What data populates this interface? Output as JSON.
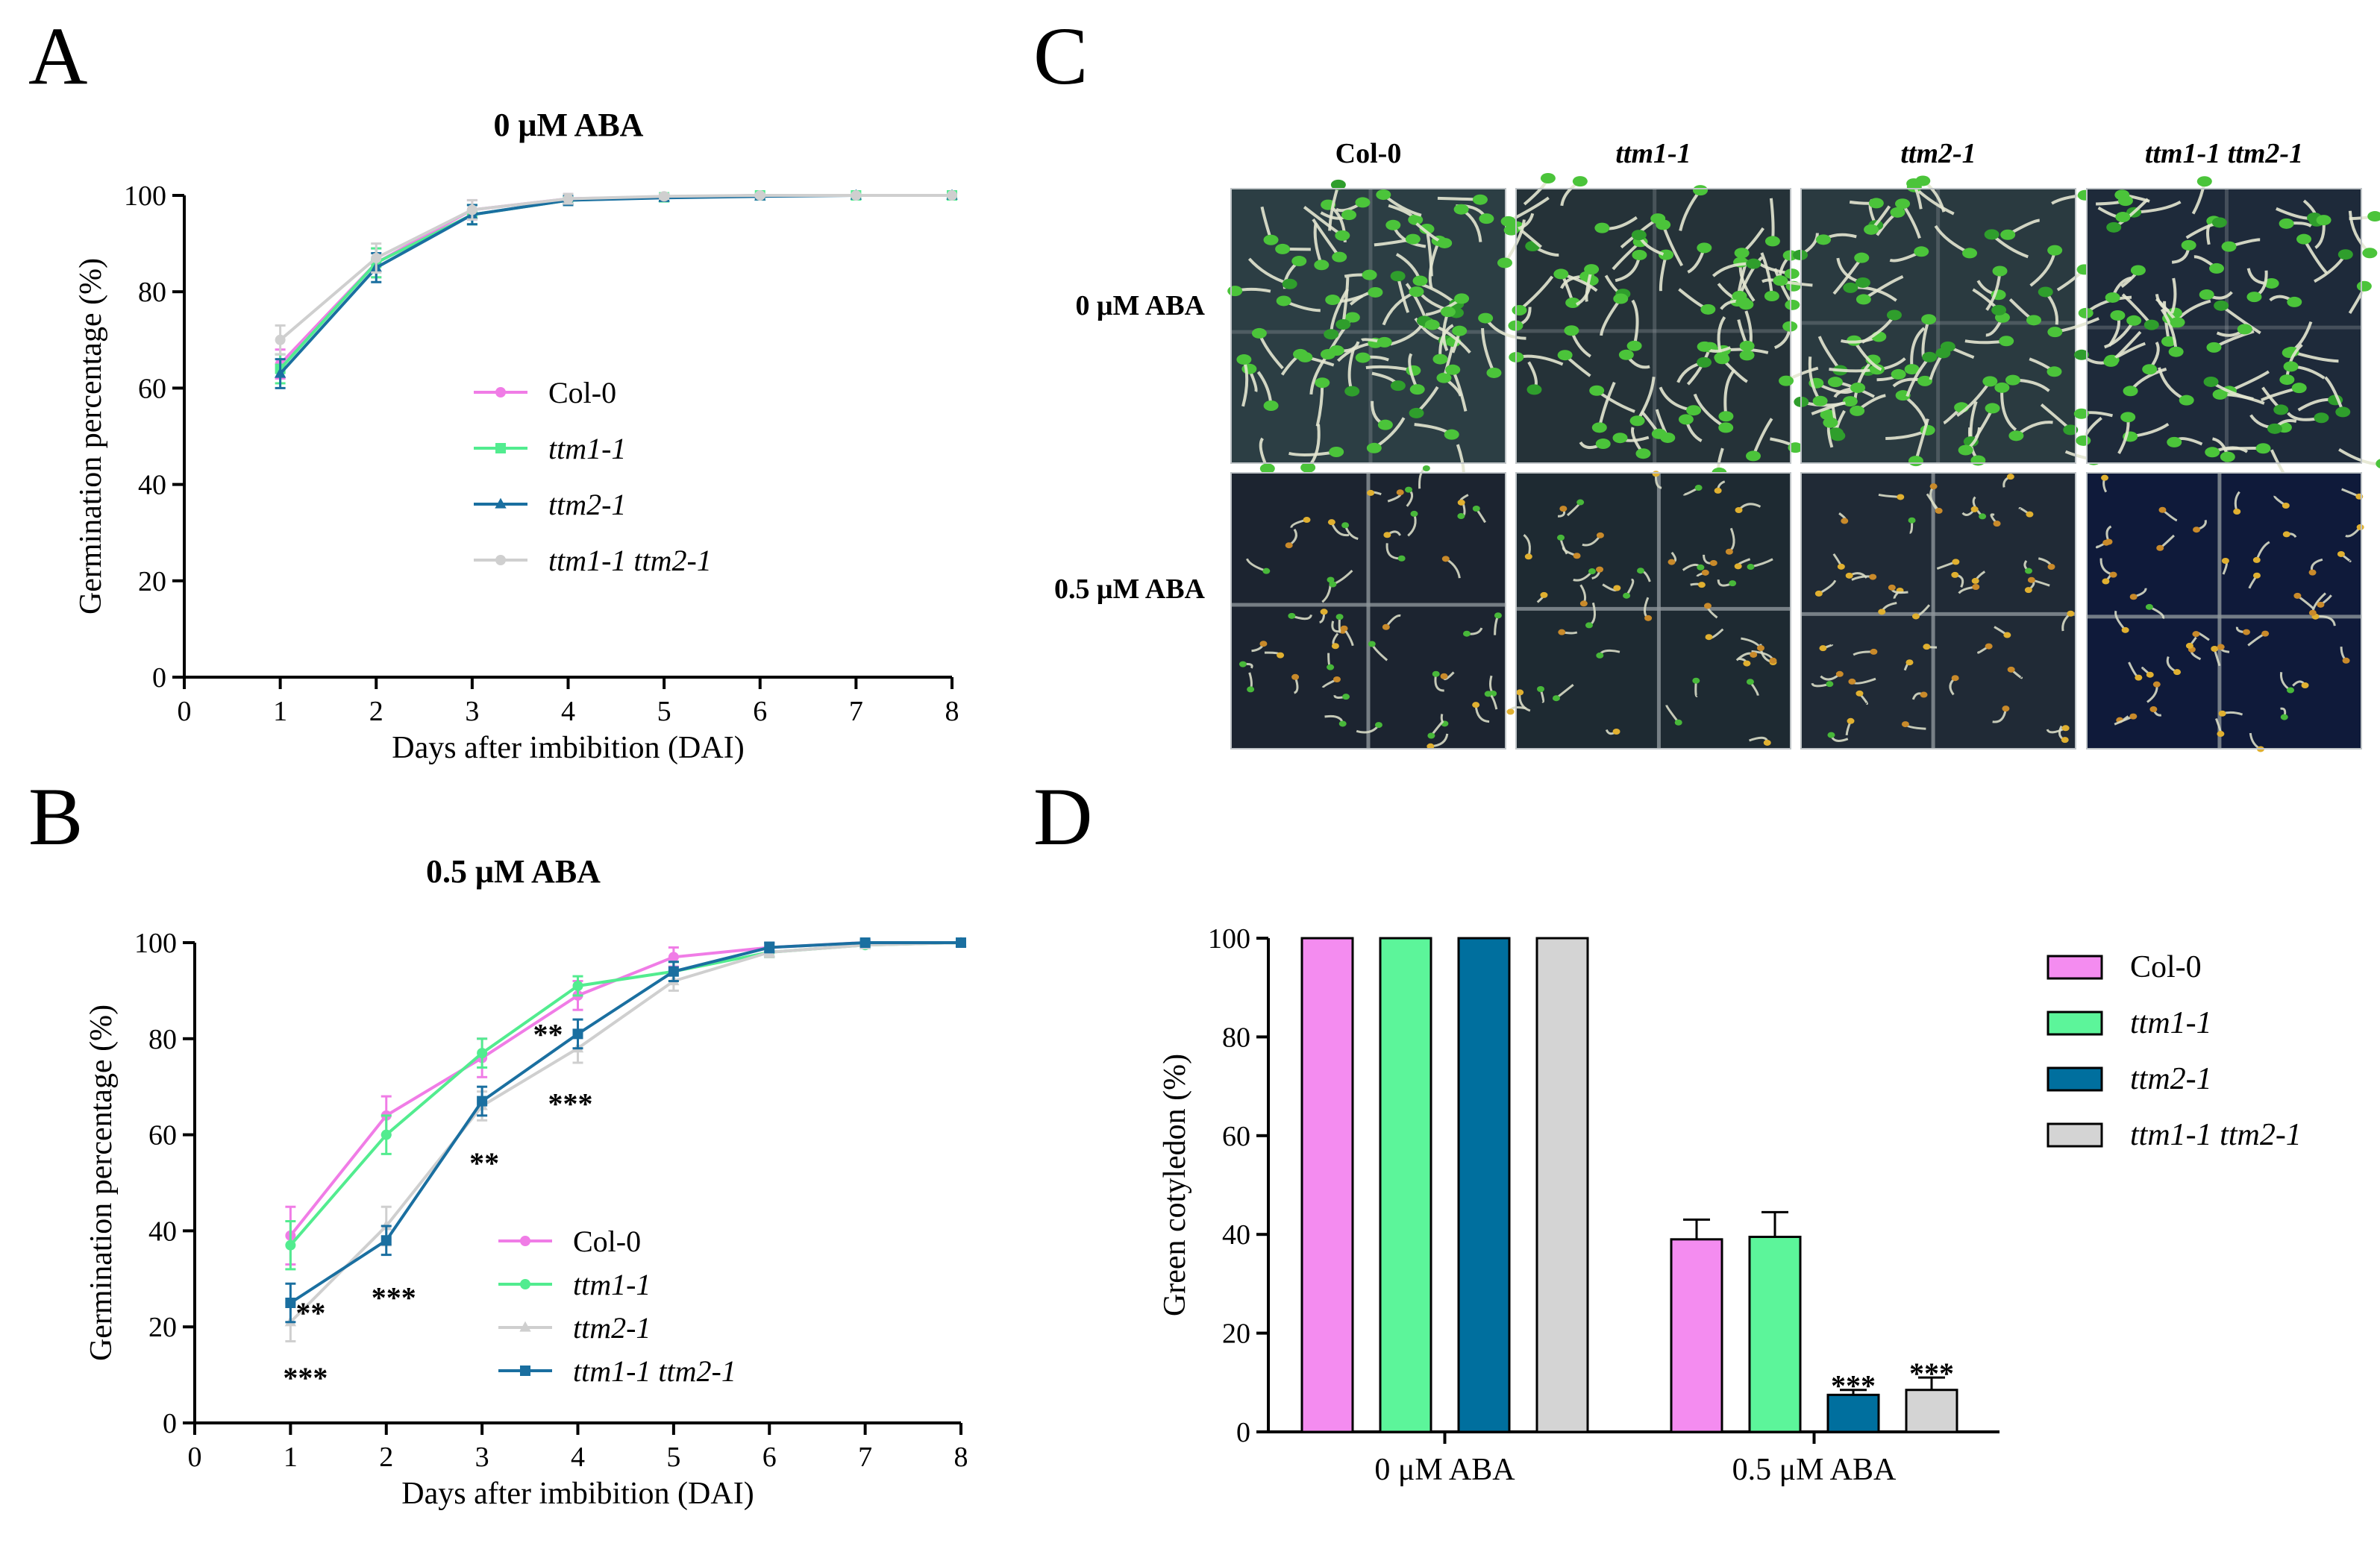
{
  "panels": {
    "A": {
      "letter": "A",
      "title": "0 μM ABA"
    },
    "B": {
      "letter": "B",
      "title": "0.5 μM ABA"
    },
    "C": {
      "letter": "C"
    },
    "D": {
      "letter": "D"
    }
  },
  "colors": {
    "col0": "#f07ce6",
    "ttm1": "#52ec8f",
    "ttm2": "#1a6fa0",
    "double": "#cfcfcf",
    "bar_col0": "#f48cf0",
    "bar_ttm1": "#5cf59a",
    "bar_ttm2": "#006f9e",
    "bar_double": "#d4d4d4"
  },
  "chart_data": [
    {
      "id": "A",
      "type": "line",
      "title": "0 μM ABA",
      "xlabel": "Days after imbibition (DAI)",
      "ylabel": "Germination percentage (%)",
      "xlim": [
        0,
        8
      ],
      "ylim": [
        0,
        100
      ],
      "xticks": [
        "0",
        "1",
        "2",
        "3",
        "4",
        "5",
        "6",
        "7",
        "8"
      ],
      "yticks": [
        "0",
        "20",
        "40",
        "60",
        "80",
        "100"
      ],
      "x": [
        1,
        2,
        3,
        4,
        5,
        6,
        7,
        8
      ],
      "series": [
        {
          "name": "Col-0",
          "italic": false,
          "marker": "circle",
          "color": "#f07ce6",
          "values": [
            65,
            86,
            97,
            99.3,
            99.7,
            100,
            100,
            100
          ],
          "errors": [
            3,
            3,
            2,
            1,
            0.5,
            0.3,
            0,
            0
          ]
        },
        {
          "name": "ttm1-1",
          "italic": true,
          "marker": "square",
          "color": "#52ec8f",
          "values": [
            64,
            86,
            96,
            99,
            99.6,
            100,
            100,
            100
          ],
          "errors": [
            3,
            3,
            2,
            1,
            0.5,
            0.3,
            0,
            0
          ]
        },
        {
          "name": "ttm2-1",
          "italic": true,
          "marker": "triangle",
          "color": "#1a6fa0",
          "values": [
            63,
            85,
            96,
            99,
            99.5,
            99.8,
            100,
            100
          ],
          "errors": [
            3,
            3,
            2,
            1,
            0.5,
            0.3,
            0,
            0
          ]
        },
        {
          "name": "ttm1-1 ttm2-1",
          "italic": true,
          "marker": "circle",
          "color": "#cfcfcf",
          "values": [
            70,
            87,
            97,
            99.3,
            99.8,
            100,
            100,
            100
          ],
          "errors": [
            3,
            3,
            2,
            1,
            0.5,
            0.3,
            0,
            0
          ]
        }
      ],
      "legend_placement": "center"
    },
    {
      "id": "B",
      "type": "line",
      "title": "0.5 μM ABA",
      "xlabel": "Days after imbibition (DAI)",
      "ylabel": "Germination percentage (%)",
      "xlim": [
        0,
        8
      ],
      "ylim": [
        0,
        100
      ],
      "xticks": [
        "0",
        "1",
        "2",
        "3",
        "4",
        "5",
        "6",
        "7",
        "8"
      ],
      "yticks": [
        "0",
        "20",
        "40",
        "60",
        "80",
        "100"
      ],
      "x": [
        1,
        2,
        3,
        4,
        5,
        6,
        7,
        8
      ],
      "series": [
        {
          "name": "Col-0",
          "italic": false,
          "marker": "circle",
          "color": "#f07ce6",
          "values": [
            39,
            64,
            76,
            89,
            97,
            99,
            100,
            100
          ],
          "errors": [
            6,
            4,
            4,
            3,
            2,
            1,
            0.5,
            0
          ]
        },
        {
          "name": "ttm1-1",
          "italic": true,
          "marker": "circle",
          "color": "#52ec8f",
          "values": [
            37,
            60,
            77,
            91,
            94,
            98,
            99.5,
            100
          ],
          "errors": [
            5,
            4,
            3,
            2,
            2,
            1,
            0.5,
            0
          ]
        },
        {
          "name": "ttm2-1",
          "italic": true,
          "marker": "triangle",
          "color": "#cfcfcf",
          "values": [
            21,
            41,
            66,
            78,
            92,
            98,
            99.5,
            100
          ],
          "errors": [
            4,
            4,
            3,
            3,
            2,
            1,
            0.5,
            0
          ]
        },
        {
          "name": "ttm1-1 ttm2-1",
          "italic": true,
          "marker": "square",
          "color": "#1a6fa0",
          "values": [
            25,
            38,
            67,
            81,
            94,
            99,
            100,
            100
          ],
          "errors": [
            4,
            3,
            3,
            3,
            2,
            1,
            0.5,
            0
          ]
        }
      ],
      "annotations": [
        {
          "text": "**",
          "x": 1,
          "y": 25
        },
        {
          "text": "***",
          "x": 1,
          "y": 21
        },
        {
          "text": "***",
          "x": 2,
          "y": 38
        },
        {
          "text": "**",
          "x": 3,
          "y": 66
        },
        {
          "text": "**",
          "x": 4,
          "y": 81
        },
        {
          "text": "***",
          "x": 4,
          "y": 78
        }
      ],
      "legend_placement": "bottom-center"
    },
    {
      "id": "D",
      "type": "bar",
      "ylabel": "Green cotyledon (%)",
      "ylim": [
        0,
        100
      ],
      "yticks": [
        "0",
        "20",
        "40",
        "60",
        "80",
        "100"
      ],
      "categories": [
        "0 μM ABA",
        "0.5 μM ABA"
      ],
      "series": [
        {
          "name": "Col-0",
          "italic": false,
          "color": "#f48cf0",
          "values": [
            100,
            39
          ],
          "errors": [
            0,
            4
          ]
        },
        {
          "name": "ttm1-1",
          "italic": true,
          "color": "#5cf59a",
          "values": [
            100,
            39.5
          ],
          "errors": [
            0,
            5
          ]
        },
        {
          "name": "ttm2-1",
          "italic": true,
          "color": "#006f9e",
          "values": [
            100,
            7.5
          ],
          "errors": [
            0,
            1
          ]
        },
        {
          "name": "ttm1-1 ttm2-1",
          "italic": true,
          "color": "#d4d4d4",
          "values": [
            100,
            8.5
          ],
          "errors": [
            0,
            2.5
          ]
        }
      ],
      "annotations": [
        {
          "text": "***",
          "category": 1,
          "series": 2
        },
        {
          "text": "***",
          "category": 1,
          "series": 3
        }
      ],
      "legend_placement": "top-right"
    }
  ],
  "photo": {
    "columns": [
      {
        "label": "Col-0",
        "italic": false
      },
      {
        "label": "ttm1-1",
        "italic": true
      },
      {
        "label": "ttm2-1",
        "italic": true
      },
      {
        "label": "ttm1-1 ttm2-1",
        "italic": true
      }
    ],
    "rows": [
      {
        "label": "0 μM ABA",
        "condition": "untreated"
      },
      {
        "label": "0.5 μM ABA",
        "condition": "aba"
      }
    ]
  }
}
